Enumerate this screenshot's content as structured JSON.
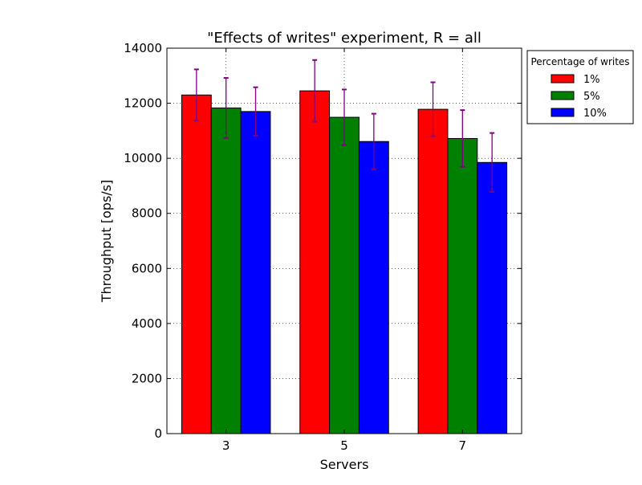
{
  "chart_data": {
    "type": "bar",
    "title": "\"Effects of writes\" experiment, R = all",
    "xlabel": "Servers",
    "ylabel": "Throughput [ops/s]",
    "categories": [
      "3",
      "5",
      "7"
    ],
    "ylim": [
      0,
      14000
    ],
    "yticks": [
      0,
      2000,
      4000,
      6000,
      8000,
      10000,
      12000,
      14000
    ],
    "grid": true,
    "legend_title": "Percentage of writes",
    "legend_position": "upper-right-outside",
    "error_bar_color": "#800080",
    "series": [
      {
        "name": "1%",
        "color": "#ff0000",
        "values": [
          12300,
          12450,
          11780
        ],
        "errors": [
          930,
          1120,
          980
        ]
      },
      {
        "name": "5%",
        "color": "#008000",
        "values": [
          11830,
          11490,
          10720
        ],
        "errors": [
          1090,
          1010,
          1030
        ]
      },
      {
        "name": "10%",
        "color": "#0000ff",
        "values": [
          11700,
          10610,
          9850
        ],
        "errors": [
          880,
          1010,
          1070
        ]
      }
    ]
  }
}
